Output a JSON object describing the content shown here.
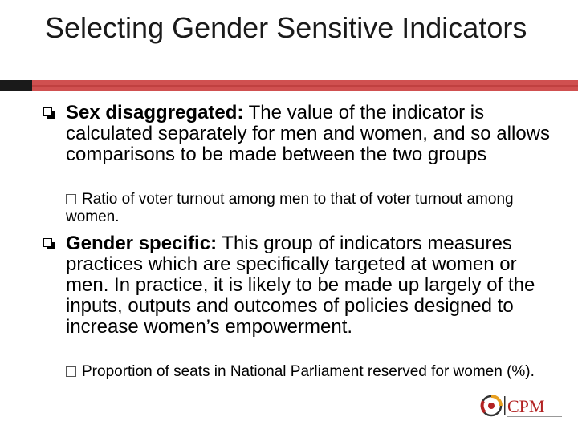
{
  "slide": {
    "title": "Selecting Gender Sensitive Indicators"
  },
  "bullets": [
    {
      "term": "Sex disaggregated:",
      "text": " The value of the indicator is calculated separately for men and women, and so allows comparisons to be made between the two groups",
      "sub": "Ratio of voter turnout among men to that of voter turnout among women."
    },
    {
      "term": "Gender specific:",
      "text": " This group of indicators measures practices which are specifically targeted at women or men. In practice, it is likely to be made up largely of the inputs, outputs and outcomes of policies designed to increase women’s empowerment.",
      "sub": "Proportion of seats in National Parliament reserved for women (%)."
    }
  ],
  "logo": {
    "text": "CPM",
    "icon": "cpm-logo-icon",
    "colors": {
      "red": "#b22222",
      "orange": "#e8a020",
      "dark": "#333333"
    }
  },
  "theme": {
    "rule_dark": "#1a1a1a",
    "rule_red": "#d05050"
  }
}
